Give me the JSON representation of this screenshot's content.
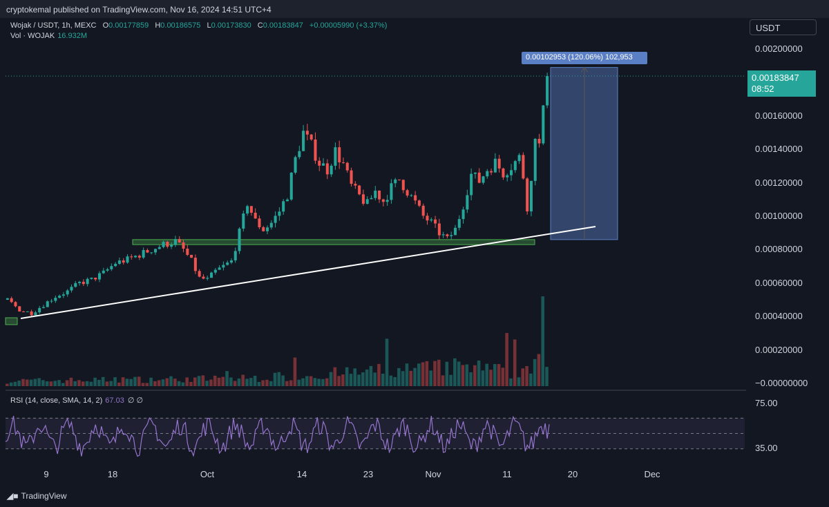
{
  "header": {
    "published": "cryptokemal published on TradingView.com, Nov 16, 2024 14:51 UTC+4"
  },
  "legend": {
    "symbol": "Wojak / USDT, 1h, MEXC",
    "open_key": "O",
    "open": "0.00177859",
    "high_key": "H",
    "high": "0.00186575",
    "low_key": "L",
    "low": "0.00173830",
    "close_key": "C",
    "close": "0.00183847",
    "change": "+0.00005990 (+3.37%)",
    "vol_label": "Vol · WOJAK",
    "vol_value": "16.932M"
  },
  "currency_selector": "USDT",
  "last_price": {
    "value": "0.00183847",
    "countdown": "08:52"
  },
  "measure_label": "0.00102953 (120.06%) 102,953",
  "price_axis": [
    "0.00200000",
    "0.00160000",
    "0.00140000",
    "0.00120000",
    "0.00100000",
    "0.00080000",
    "0.00060000",
    "0.00040000",
    "0.00020000",
    "−0.00000000"
  ],
  "rsi": {
    "label": "RSI (14, close, SMA, 14, 2)",
    "value": "67.03",
    "extra": "∅  ∅",
    "axis": [
      "75.00",
      "35.00"
    ]
  },
  "date_axis": [
    "9",
    "18",
    "Oct",
    "14",
    "23",
    "Nov",
    "11",
    "20",
    "Dec"
  ],
  "footer": {
    "brand": "TradingView",
    "brand_icon": "tradingview-logo-icon"
  },
  "colors": {
    "background": "#131722",
    "up": "#26a69a",
    "down": "#ef5350",
    "rsi": "#9575cd",
    "zone": "#4caf50",
    "measure": "#5b7fc4"
  },
  "chart_data": {
    "type": "candlestick",
    "series": [
      {
        "name": "Wojak / USDT",
        "timeframe": "1h",
        "exchange": "MEXC"
      }
    ],
    "y_range": [
      0,
      0.002
    ],
    "last_close": 0.00183847,
    "support_zone": [
      0.00083,
      0.00086
    ],
    "trendline": [
      [
        0.0004,
        0.0009
      ]
    ],
    "measure": {
      "from": 0.00086,
      "to": 0.00189,
      "change": 0.00102953,
      "percent": 120.06
    },
    "path": [
      [
        0,
        0.0005
      ],
      [
        3,
        0.00044
      ],
      [
        6,
        0.00042
      ],
      [
        9,
        0.00047
      ],
      [
        12,
        0.00052
      ],
      [
        15,
        0.00055
      ],
      [
        18,
        0.0006
      ],
      [
        21,
        0.00062
      ],
      [
        24,
        0.00066
      ],
      [
        27,
        0.00072
      ],
      [
        30,
        0.00074
      ],
      [
        33,
        0.00077
      ],
      [
        36,
        0.0008
      ],
      [
        39,
        0.00083
      ],
      [
        42,
        0.00085
      ],
      [
        44,
        0.0008
      ],
      [
        46,
        0.00073
      ],
      [
        48,
        0.00063
      ],
      [
        50,
        0.00062
      ],
      [
        52,
        0.00067
      ],
      [
        54,
        0.0007
      ],
      [
        56,
        0.00073
      ],
      [
        58,
        0.0009
      ],
      [
        60,
        0.00108
      ],
      [
        62,
        0.00097
      ],
      [
        64,
        0.00092
      ],
      [
        66,
        0.00096
      ],
      [
        68,
        0.00103
      ],
      [
        70,
        0.00113
      ],
      [
        72,
        0.00134
      ],
      [
        74,
        0.0015
      ],
      [
        76,
        0.00142
      ],
      [
        78,
        0.00132
      ],
      [
        80,
        0.00128
      ],
      [
        82,
        0.00139
      ],
      [
        84,
        0.00131
      ],
      [
        86,
        0.00118
      ],
      [
        88,
        0.00112
      ],
      [
        90,
        0.00107
      ],
      [
        92,
        0.00115
      ],
      [
        94,
        0.00109
      ],
      [
        96,
        0.00117
      ],
      [
        98,
        0.00122
      ],
      [
        100,
        0.00115
      ],
      [
        102,
        0.00108
      ],
      [
        104,
        0.001
      ],
      [
        106,
        0.00096
      ],
      [
        108,
        0.0009
      ],
      [
        110,
        0.00086
      ],
      [
        112,
        0.00092
      ],
      [
        114,
        0.00107
      ],
      [
        116,
        0.00125
      ],
      [
        118,
        0.00121
      ],
      [
        120,
        0.00128
      ],
      [
        122,
        0.00132
      ],
      [
        124,
        0.00126
      ],
      [
        126,
        0.0013
      ],
      [
        128,
        0.00135
      ],
      [
        129,
        0.00124
      ],
      [
        130,
        0.00106
      ],
      [
        131,
        0.0012
      ],
      [
        132,
        0.0015
      ],
      [
        133,
        0.00142
      ],
      [
        134,
        0.00162
      ],
      [
        135,
        0.00184
      ]
    ],
    "volume_shape": [
      [
        0,
        0.08
      ],
      [
        60,
        0.12
      ],
      [
        115,
        0.3
      ],
      [
        128,
        0.2
      ],
      [
        134,
        0.55
      ],
      [
        135,
        0.2
      ]
    ],
    "rsi_shape": [
      [
        0,
        50
      ],
      [
        135,
        67.03
      ]
    ]
  }
}
